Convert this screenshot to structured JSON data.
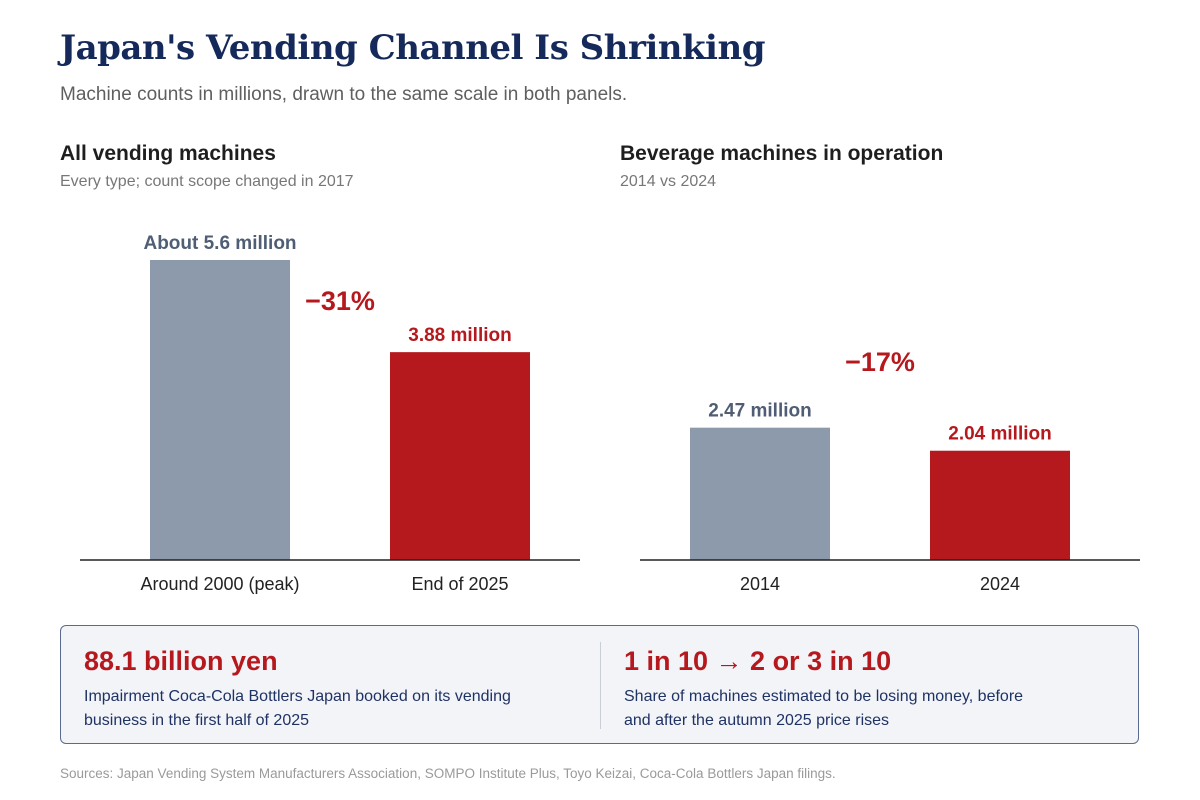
{
  "header": {
    "title": "Japan's Vending Channel Is Shrinking",
    "subtitle": "Machine counts in millions, drawn to the same scale in both panels."
  },
  "panels": [
    {
      "title": "All vending machines",
      "subtitle": "Every type; count scope changed in 2017"
    },
    {
      "title": "Beverage machines in operation",
      "subtitle": "2014 vs 2024"
    }
  ],
  "chart_data": [
    {
      "type": "bar",
      "title": "All vending machines",
      "categories": [
        "Around 2000 (peak)",
        "End of 2025"
      ],
      "values": [
        5.6,
        3.88
      ],
      "value_labels": [
        "About 5.6 million",
        "3.88 million"
      ],
      "bar_colors": [
        "#8d9aab",
        "#b5191d"
      ],
      "label_colors": [
        "#4f5e74",
        "#b5191d"
      ],
      "change_label": "−31%",
      "unit": "millions",
      "ylim": [
        0,
        6
      ],
      "grid": false,
      "legend": "none"
    },
    {
      "type": "bar",
      "title": "Beverage machines in operation",
      "categories": [
        "2014",
        "2024"
      ],
      "values": [
        2.47,
        2.04
      ],
      "value_labels": [
        "2.47 million",
        "2.04 million"
      ],
      "bar_colors": [
        "#8d9aab",
        "#b5191d"
      ],
      "label_colors": [
        "#4f5e74",
        "#b5191d"
      ],
      "change_label": "−17%",
      "unit": "millions",
      "ylim": [
        0,
        6
      ],
      "grid": false,
      "legend": "none"
    }
  ],
  "callouts": [
    {
      "stat": "88.1 billion yen",
      "description": "Impairment Coca-Cola Bottlers Japan booked on its vending business in the first half of 2025"
    },
    {
      "stat": "1 in 10 → 2 or 3 in 10",
      "description": "Share of machines estimated to be losing money, before and after the autumn 2025 price rises"
    }
  ],
  "sources": "Sources: Japan Vending System Manufacturers Association, SOMPO Institute Plus, Toyo Keizai, Coca-Cola Bottlers Japan filings.",
  "colors": {
    "title": "#152a5a",
    "accent": "#b5191d",
    "neutral_bar": "#8d9aab",
    "callout_text": "#1f3264",
    "callout_bg": "#f2f4f8"
  }
}
